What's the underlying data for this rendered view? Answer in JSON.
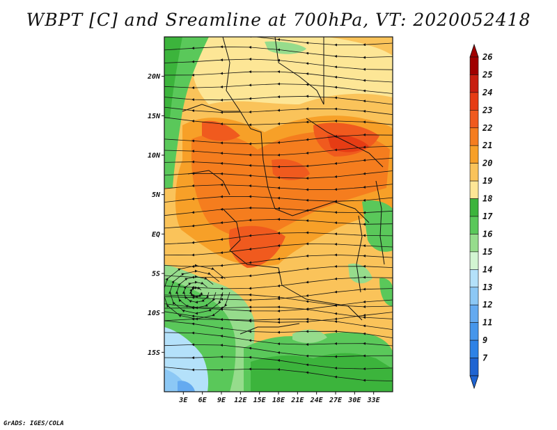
{
  "title": "WBPT [C] and Sreamline at 700hPa, VT: 2020052418",
  "credit": "GrADS: IGES/COLA",
  "map": {
    "lon_range": [
      0,
      36
    ],
    "lat_range": [
      -20,
      25
    ],
    "lat_labels": [
      {
        "value": 20,
        "label": "20N"
      },
      {
        "value": 15,
        "label": "15N"
      },
      {
        "value": 10,
        "label": "10N"
      },
      {
        "value": 5,
        "label": "5N"
      },
      {
        "value": 0,
        "label": "EQ"
      },
      {
        "value": -5,
        "label": "5S"
      },
      {
        "value": -10,
        "label": "10S"
      },
      {
        "value": -15,
        "label": "15S"
      }
    ],
    "lon_labels": [
      {
        "value": 3,
        "label": "3E"
      },
      {
        "value": 6,
        "label": "6E"
      },
      {
        "value": 9,
        "label": "9E"
      },
      {
        "value": 12,
        "label": "12E"
      },
      {
        "value": 15,
        "label": "15E"
      },
      {
        "value": 18,
        "label": "18E"
      },
      {
        "value": 21,
        "label": "21E"
      },
      {
        "value": 24,
        "label": "24E"
      },
      {
        "value": 27,
        "label": "27E"
      },
      {
        "value": 30,
        "label": "30E"
      },
      {
        "value": 33,
        "label": "33E"
      }
    ]
  },
  "colorbar": {
    "levels": [
      {
        "label": "26",
        "color": "#a00000"
      },
      {
        "label": "25",
        "color": "#c81e10"
      },
      {
        "label": "24",
        "color": "#e63c14"
      },
      {
        "label": "23",
        "color": "#f05a1e"
      },
      {
        "label": "22",
        "color": "#f57d1e"
      },
      {
        "label": "21",
        "color": "#f7a028"
      },
      {
        "label": "20",
        "color": "#fac35a"
      },
      {
        "label": "19",
        "color": "#fde696"
      },
      {
        "label": "18",
        "color": "#3cb43c"
      },
      {
        "label": "17",
        "color": "#5ac85a"
      },
      {
        "label": "16",
        "color": "#96dc8c"
      },
      {
        "label": "15",
        "color": "#d2f5d2"
      },
      {
        "label": "14",
        "color": "#b4e1fa"
      },
      {
        "label": "13",
        "color": "#8cc8f5"
      },
      {
        "label": "12",
        "color": "#64aaf0"
      },
      {
        "label": "11",
        "color": "#4696eb"
      },
      {
        "label": "9",
        "color": "#2d82e6"
      },
      {
        "label": "7",
        "color": "#1e64d2"
      }
    ]
  }
}
